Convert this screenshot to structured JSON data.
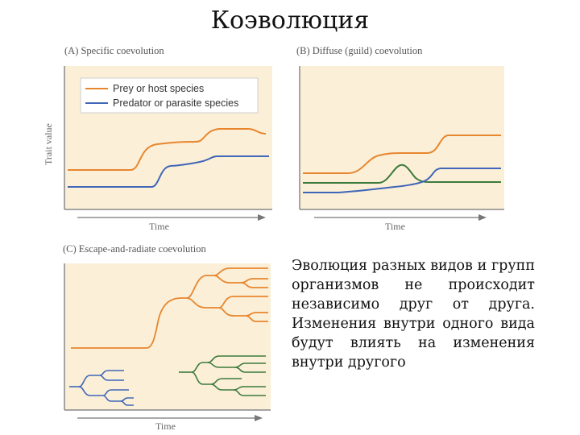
{
  "slide": {
    "title": "Коэволюция",
    "body": "Эволюция разных видов и групп организмов не происходит независимо друг от друга. Изменения внутри одного вида будут влиять на изменения внутри другого"
  },
  "figure": {
    "panel_a": {
      "caption": "(A) Specific coevolution",
      "x_label": "Time",
      "y_label": "Trait value"
    },
    "panel_b": {
      "caption": "(B) Diffuse (guild) coevolution",
      "x_label": "Time"
    },
    "panel_c": {
      "caption": "(C) Escape-and-radiate coevolution",
      "x_label": "Time"
    },
    "legend": {
      "prey": "Prey or host species",
      "predator": "Predator or parasite species"
    },
    "colors": {
      "panel_bg": "#fbefd8",
      "prey": "#e8862e",
      "predator": "#3f66b8",
      "guild": "#3c7a3c",
      "axis": "#888888"
    }
  }
}
